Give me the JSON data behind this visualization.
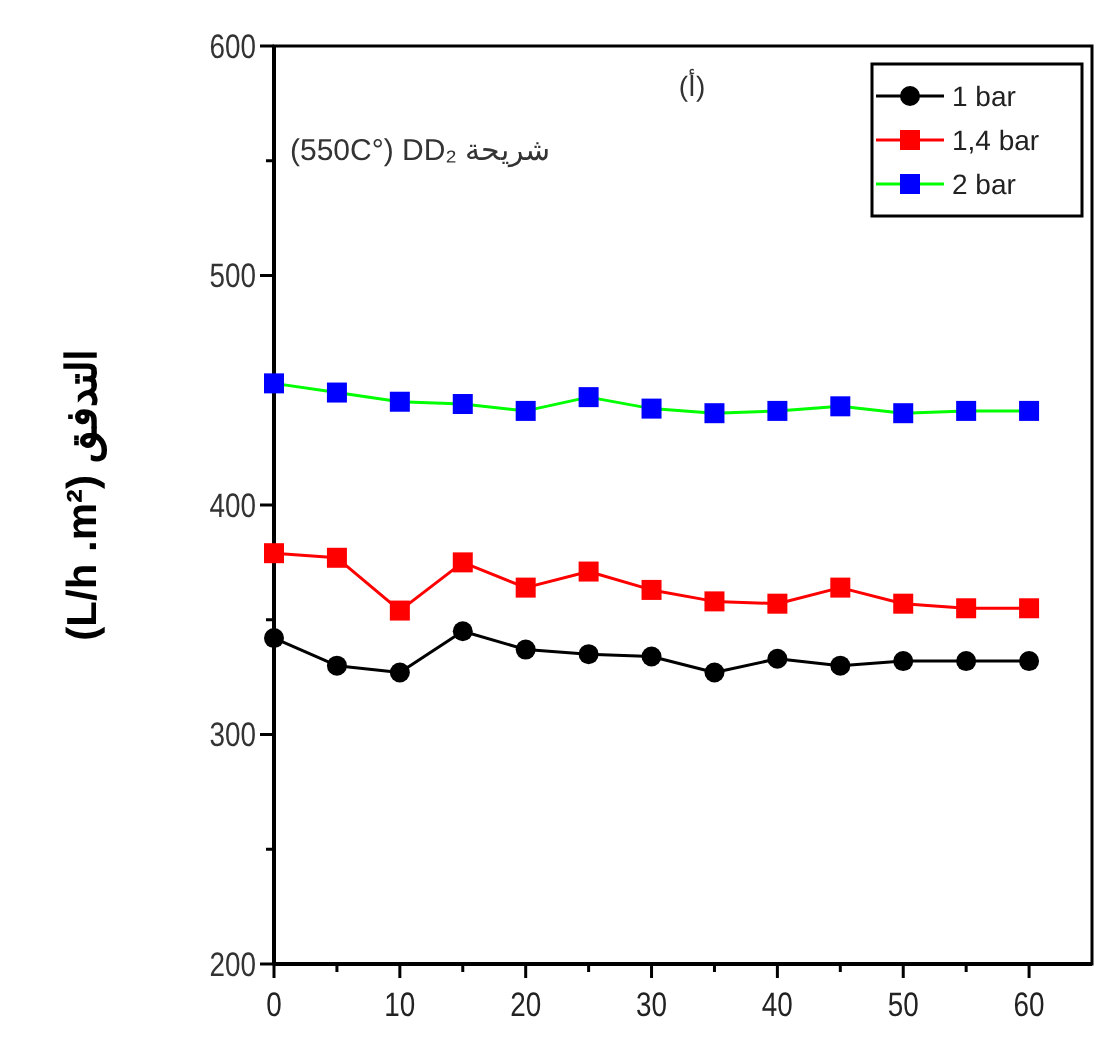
{
  "chart_data": {
    "type": "line",
    "title": "(أ)",
    "ylabel": "(L/h .m²) التدفق",
    "annotations": [
      "(550C°) DD₂ شريحة"
    ],
    "x": [
      0,
      5,
      10,
      15,
      20,
      25,
      30,
      35,
      40,
      45,
      50,
      55,
      60
    ],
    "series": [
      {
        "name": "1 bar",
        "color": "#000000",
        "marker": "circle",
        "values": [
          342,
          330,
          327,
          345,
          337,
          335,
          334,
          327,
          333,
          330,
          332,
          332,
          332
        ]
      },
      {
        "name": "1,4 bar",
        "color": "#ff0000",
        "marker": "square",
        "values": [
          379,
          377,
          354,
          375,
          364,
          371,
          363,
          358,
          357,
          364,
          357,
          355,
          355
        ]
      },
      {
        "name": "2 bar",
        "color": "#00ff00",
        "colors": [
          "#0000ff",
          "#0000ff",
          "#0000ff",
          "#0000ff",
          "#0000ff",
          "#0000ff",
          "#0000ff",
          "#0000ff",
          "#0000ff",
          "#0000ff",
          "#0000ff",
          "#0000ff",
          "#0000ff"
        ],
        "marker": "square",
        "values": [
          453,
          449,
          445,
          444,
          441,
          447,
          442,
          440,
          441,
          443,
          440,
          441,
          441
        ]
      }
    ],
    "xlim": [
      0,
      65
    ],
    "ylim": [
      200,
      600
    ],
    "xticks": [
      0,
      {
        "value": 5,
        "label": null
      },
      10,
      {
        "value": 15,
        "label": null
      },
      20,
      {
        "value": 25,
        "label": null
      },
      30,
      {
        "value": 35,
        "label": null
      },
      40,
      {
        "value": 45,
        "label": null
      },
      50,
      {
        "value": 55,
        "label": null
      },
      60
    ],
    "yticks": [
      200,
      {
        "value": 250,
        "label": null
      },
      300,
      {
        "value": 350,
        "label": null
      },
      400,
      {
        "value": 450,
        "label": null
      },
      500,
      {
        "value": 550,
        "label": null
      },
      600
    ],
    "grid": false,
    "legend": "top right",
    "line_style": "solid"
  }
}
